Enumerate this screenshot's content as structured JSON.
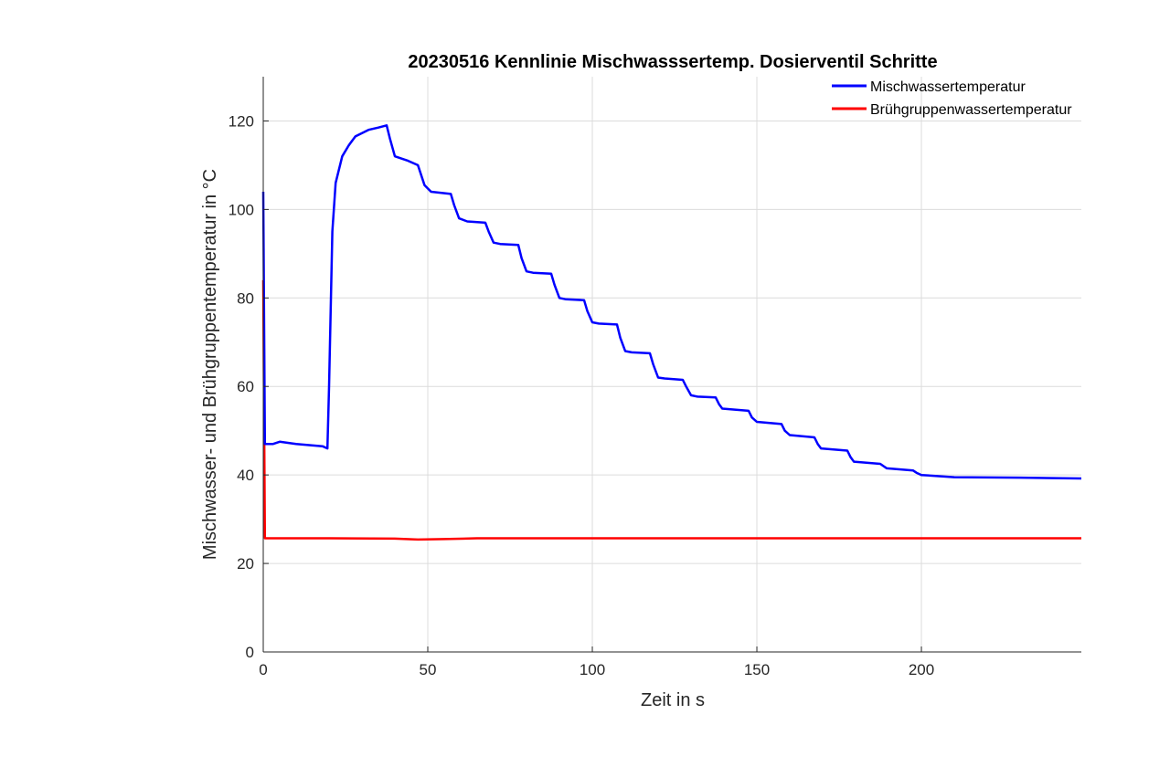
{
  "chart_data": {
    "type": "line",
    "title": "20230516 Kennlinie  Mischwasssertemp. Dosierventil Schritte",
    "xlabel": "Zeit in s",
    "ylabel": "Mischwasser- und Brühgruppentemperatur in °C",
    "xlim": [
      0,
      248.6
    ],
    "ylim": [
      0,
      130
    ],
    "xticks": [
      0,
      50,
      100,
      150,
      200
    ],
    "yticks": [
      0,
      20,
      40,
      60,
      80,
      100,
      120
    ],
    "grid": true,
    "legend_position": "top-right",
    "series": [
      {
        "name": "Mischwassertemperatur",
        "color": "#0000ff",
        "x": [
          0,
          0.5,
          3,
          5,
          10,
          18,
          19.5,
          20,
          21,
          22,
          24,
          26,
          28,
          32,
          35,
          37.5,
          38.5,
          40,
          44,
          47,
          49,
          51,
          57,
          58,
          59.5,
          62,
          67.5,
          68.5,
          70,
          72,
          77.5,
          78.5,
          80,
          82,
          87.5,
          88.5,
          90,
          92,
          97.5,
          98.5,
          100,
          102,
          107.5,
          108.5,
          110,
          112,
          117.5,
          118.5,
          120,
          122,
          127.5,
          128.5,
          130,
          132,
          137.5,
          138.5,
          139.5,
          147.5,
          148.5,
          150,
          157.5,
          158.5,
          160,
          167.5,
          168.5,
          169.5,
          177.5,
          178.5,
          179.5,
          187.5,
          188.5,
          189.5,
          197.5,
          198.5,
          200,
          210,
          230,
          248.6
        ],
        "y": [
          104,
          47,
          47,
          47.5,
          47,
          46.5,
          46,
          60,
          95,
          106,
          112,
          114.5,
          116.5,
          118,
          118.5,
          119,
          116,
          112,
          111,
          110,
          105.5,
          104,
          103.5,
          101,
          98,
          97.3,
          97,
          95,
          92.5,
          92.2,
          92,
          89,
          86,
          85.7,
          85.5,
          83,
          80,
          79.7,
          79.5,
          77,
          74.5,
          74.2,
          74,
          71,
          68,
          67.7,
          67.5,
          65,
          62,
          61.8,
          61.5,
          60,
          58,
          57.7,
          57.5,
          56,
          55,
          54.5,
          53,
          52,
          51.5,
          50,
          49,
          48.5,
          47,
          46,
          45.5,
          44,
          43,
          42.5,
          42,
          41.5,
          41,
          40.5,
          40,
          39.5,
          39.4,
          39.2
        ]
      },
      {
        "name": "Brühgruppenwassertemperatur",
        "color": "#ff0000",
        "x": [
          0,
          0.5,
          20,
          40,
          47,
          55,
          65,
          100,
          150,
          200,
          248.6
        ],
        "y": [
          84,
          25.7,
          25.7,
          25.6,
          25.4,
          25.5,
          25.7,
          25.7,
          25.7,
          25.7,
          25.7
        ]
      }
    ]
  }
}
